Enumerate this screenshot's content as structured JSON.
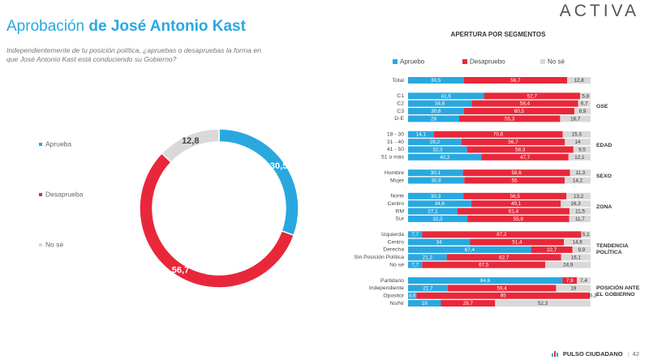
{
  "header": {
    "title_lead": "Aprobación",
    "title_name": "de José Antonio Kast",
    "subtitle": "Independientemente de tu posición política, ¿apruebas o desapruebas la forma en que José Antonio Kast está conduciendo su Gobierno?",
    "logo": "ACTIVA"
  },
  "chart_data": [
    {
      "type": "donut",
      "categories": [
        "Aprueba",
        "Desaprueba",
        "No sé"
      ],
      "values": [
        30.5,
        56.7,
        12.8
      ],
      "value_labels": [
        "30,5",
        "56,7",
        "12,8"
      ],
      "colors": [
        "#29a8e0",
        "#e8283a",
        "#d9d9d9"
      ],
      "legend": "left"
    },
    {
      "type": "stacked-bar",
      "orientation": "horizontal",
      "title": "APERTURA POR SEGMENTOS",
      "legend": "top",
      "categories": [
        "Total",
        "C1",
        "C2",
        "C3",
        "D-E",
        "18 - 30",
        "31 - 40",
        "41 - 50",
        "51 o más",
        "Hombre",
        "Mujer",
        "Norte",
        "Centro",
        "RM",
        "Sur",
        "Izquierda",
        "Centro",
        "Derecha",
        "Sin Posición Política",
        "No sé",
        "Partidario",
        "Independiente",
        "Opositor",
        "Ns/Nr"
      ],
      "segment_labels": [
        "GSE",
        "EDAD",
        "SEXO",
        "ZONA",
        "TENDENCIA POLÍTICA",
        "POSICIÓN ANTE EL GOBIERNO"
      ],
      "series": [
        {
          "name": "Apruebo",
          "color": "#29a8e0",
          "values": [
            30.5,
            41.6,
            34.8,
            30.6,
            28,
            14.1,
            29.2,
            32.3,
            40.2,
            30.1,
            30.8,
            30.3,
            34.6,
            27.1,
            32.5,
            7.7,
            34,
            67.4,
            21.2,
            7.7,
            84.6,
            21.7,
            4.6,
            18
          ],
          "value_labels": [
            "30,5",
            "41,6",
            "34,8",
            "30,6",
            "28",
            "14,1",
            "29,2",
            "32,3",
            "40,2",
            "30,1",
            "30,8",
            "30,3",
            "34,6",
            "27,1",
            "32,5",
            "7,7",
            "34",
            "67,4",
            "21,2",
            "7,7",
            "84,6",
            "21,7",
            "4,6",
            "18"
          ]
        },
        {
          "name": "Desapruebo",
          "color": "#e8283a",
          "values": [
            56.7,
            52.7,
            58.4,
            60.5,
            55.3,
            70.6,
            56.7,
            58.3,
            47.7,
            58.6,
            55,
            56.5,
            49.1,
            61.4,
            55.8,
            87.2,
            51.4,
            22.7,
            62.7,
            67.5,
            7.9,
            59.4,
            95,
            29.7
          ],
          "value_labels": [
            "56,7",
            "52,7",
            "58,4",
            "60,5",
            "55,3",
            "70,6",
            "56,7",
            "58,3",
            "47,7",
            "58,6",
            "55",
            "56,5",
            "49,1",
            "61,4",
            "55,8",
            "87,2",
            "51,4",
            "22,7",
            "62,7",
            "67,5",
            "7,9",
            "59,4",
            "95",
            "29,7"
          ]
        },
        {
          "name": "No sé",
          "color": "#d9d9d9",
          "values": [
            12.8,
            5.8,
            6.7,
            8.9,
            16.7,
            15.3,
            14,
            9.5,
            12.1,
            11.3,
            14.2,
            13.2,
            16.3,
            11.5,
            11.7,
            5.1,
            14.6,
            9.9,
            16.1,
            24.9,
            7.4,
            19,
            0.3,
            52.3
          ],
          "value_labels": [
            "12,8",
            "5,8",
            "6,7",
            "8,9",
            "16,7",
            "15,3",
            "14",
            "9,5",
            "12,1",
            "11,3",
            "14,2",
            "13,2",
            "16,3",
            "11,5",
            "11,7",
            "5,1",
            "14,6",
            "9,9",
            "16,1",
            "24,9",
            "7,4",
            "19",
            "0,3",
            "52,3"
          ]
        }
      ]
    }
  ],
  "footer": {
    "brand": "PULSO CIUDADANO",
    "page": 42
  }
}
